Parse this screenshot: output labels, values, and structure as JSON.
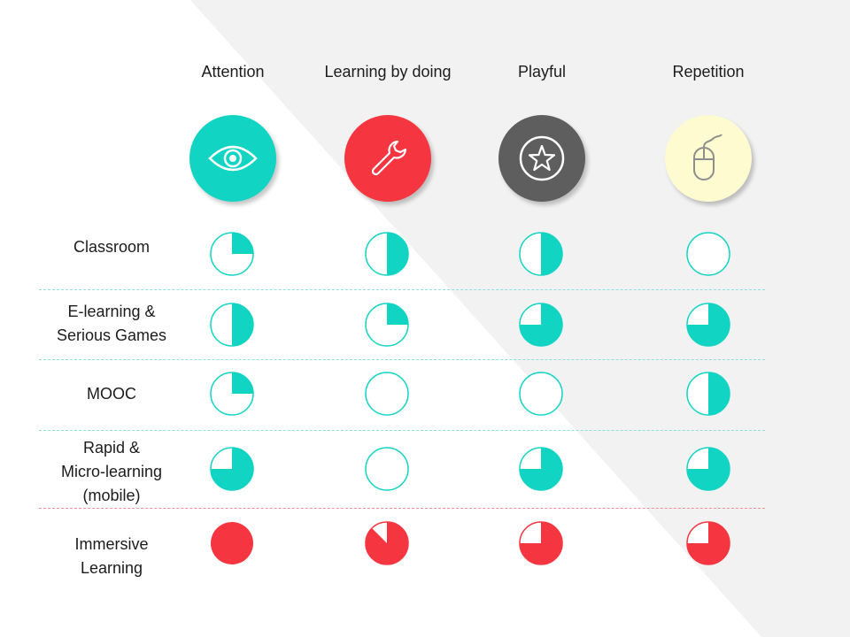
{
  "colors": {
    "teal": "#11d4c3",
    "red": "#f53640",
    "dark_gray": "#5e5e5e",
    "pale_yellow": "#fdfbcf",
    "divider_teal": "#8fe0d6",
    "divider_red": "#f08f94"
  },
  "columns": [
    {
      "label": "Attention",
      "icon": "eye-icon",
      "icon_bg": "#11d4c3"
    },
    {
      "label": "Learning by doing",
      "icon": "wrench-icon",
      "icon_bg": "#f53640"
    },
    {
      "label": "Playful",
      "icon": "star-icon",
      "icon_bg": "#5e5e5e"
    },
    {
      "label": "Repetition",
      "icon": "mouse-icon",
      "icon_bg": "#fdfbcf"
    }
  ],
  "rows": [
    {
      "label_lines": [
        "Classroom"
      ],
      "color": "#11d4c3",
      "scores": [
        0.25,
        0.5,
        0.5,
        0
      ]
    },
    {
      "label_lines": [
        "E-learning &",
        "Serious Games"
      ],
      "color": "#11d4c3",
      "scores": [
        0.5,
        0.25,
        0.75,
        0.75
      ]
    },
    {
      "label_lines": [
        "MOOC"
      ],
      "color": "#11d4c3",
      "scores": [
        0.25,
        0,
        0,
        0.5
      ]
    },
    {
      "label_lines": [
        "Rapid &",
        "Micro-learning",
        "(mobile)"
      ],
      "color": "#11d4c3",
      "scores": [
        0.75,
        0,
        0.75,
        0.75
      ]
    },
    {
      "label_lines": [
        "Immersive",
        "Learning"
      ],
      "color": "#f53640",
      "scores": [
        1,
        0.875,
        0.75,
        0.75
      ]
    }
  ]
}
